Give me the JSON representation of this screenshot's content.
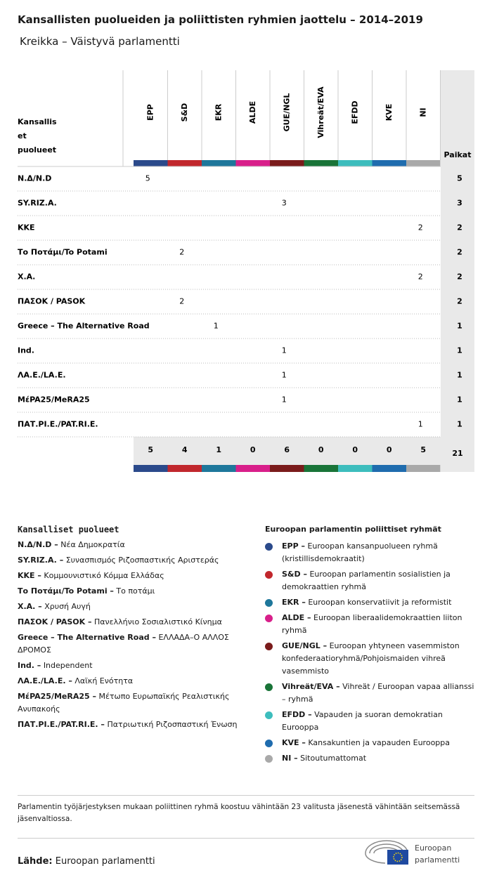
{
  "header": {
    "title": "Kansallisten puolueiden ja poliittisten ryhmien jaottelu – 2014–2019",
    "subtitle": "Kreikka – Väistyvä parlamentti"
  },
  "table": {
    "party_header": [
      "Kansallis",
      "et",
      "puolueet"
    ],
    "total_header": "Paikat",
    "groups": [
      {
        "name": "EPP",
        "color": "#2b4a8b"
      },
      {
        "name": "S&D",
        "color": "#c1272d"
      },
      {
        "name": "EKR",
        "color": "#1e779b"
      },
      {
        "name": "ALDE",
        "color": "#d81f8a"
      },
      {
        "name": "GUE/NGL",
        "color": "#7a1b1b"
      },
      {
        "name": "Vihreät/EVA",
        "color": "#197438"
      },
      {
        "name": "EFDD",
        "color": "#3dbdbd"
      },
      {
        "name": "KVE",
        "color": "#1f6cae"
      },
      {
        "name": "NI",
        "color": "#a9a9a9"
      }
    ],
    "rows": [
      {
        "party": "N.Δ/N.D",
        "cells": [
          5,
          null,
          null,
          null,
          null,
          null,
          null,
          null,
          null
        ],
        "total": 5
      },
      {
        "party": "SY.RIZ.A.",
        "cells": [
          null,
          null,
          null,
          null,
          3,
          null,
          null,
          null,
          null
        ],
        "total": 3
      },
      {
        "party": "KKE",
        "cells": [
          null,
          null,
          null,
          null,
          null,
          null,
          null,
          null,
          2
        ],
        "total": 2
      },
      {
        "party": "Το Ποτάμι/To Potami",
        "cells": [
          null,
          2,
          null,
          null,
          null,
          null,
          null,
          null,
          null
        ],
        "total": 2
      },
      {
        "party": "Χ.Α.",
        "cells": [
          null,
          null,
          null,
          null,
          null,
          null,
          null,
          null,
          2
        ],
        "total": 2
      },
      {
        "party": "ΠΑΣΟΚ / PASOK",
        "cells": [
          null,
          2,
          null,
          null,
          null,
          null,
          null,
          null,
          null
        ],
        "total": 2
      },
      {
        "party": "Greece – The Alternative Road",
        "cells": [
          null,
          null,
          1,
          null,
          null,
          null,
          null,
          null,
          null
        ],
        "total": 1
      },
      {
        "party": "Ind.",
        "cells": [
          null,
          null,
          null,
          null,
          1,
          null,
          null,
          null,
          null
        ],
        "total": 1
      },
      {
        "party": "ΛΑ.Ε./LA.E.",
        "cells": [
          null,
          null,
          null,
          null,
          1,
          null,
          null,
          null,
          null
        ],
        "total": 1
      },
      {
        "party": "MέPA25/MeRA25",
        "cells": [
          null,
          null,
          null,
          null,
          1,
          null,
          null,
          null,
          null
        ],
        "total": 1
      },
      {
        "party": "ΠΑΤ.ΡΙ.Ε./PAT.RI.E.",
        "cells": [
          null,
          null,
          null,
          null,
          null,
          null,
          null,
          null,
          1
        ],
        "total": 1
      }
    ],
    "totals": {
      "cells": [
        5,
        4,
        1,
        0,
        6,
        0,
        0,
        0,
        5
      ],
      "total": 21
    }
  },
  "legend_parties": {
    "title": "Kansalliset puolueet",
    "items": [
      {
        "abbr": "N.Δ/N.D –",
        "name": "Νέα Δημοκρατία"
      },
      {
        "abbr": "SY.RIZ.A. –",
        "name": "Συνασπισμός Ριζοσπαστικής Αριστεράς"
      },
      {
        "abbr": "KKE –",
        "name": "Κομμουνιστικό Κόμμα Ελλάδας"
      },
      {
        "abbr": "Το Ποτάμι/To Potami –",
        "name": "Το ποτάμι"
      },
      {
        "abbr": "Χ.Α. –",
        "name": "Χρυσή Αυγή"
      },
      {
        "abbr": "ΠΑΣΟΚ / PASOK –",
        "name": "Πανελλήνιο Σοσιαλιστικό Κίνημα"
      },
      {
        "abbr": "Greece – The Alternative Road –",
        "name": "ΕΛΛΑΔΑ–Ο ΑΛΛΟΣ ΔΡΟΜΟΣ"
      },
      {
        "abbr": "Ind. –",
        "name": "Independent"
      },
      {
        "abbr": "ΛΑ.Ε./LA.E. –",
        "name": "Λαϊκή Ενότητα"
      },
      {
        "abbr": "MέPA25/MeRA25 –",
        "name": "Μέτωπο Ευρωπαϊκής Ρεαλιστικής Ανυπακοής"
      },
      {
        "abbr": "ΠΑΤ.ΡΙ.Ε./PAT.RI.E. –",
        "name": "Πατριωτική Ριζοσπαστική Ένωση"
      }
    ]
  },
  "legend_groups": {
    "title": "Euroopan parlamentin poliittiset ryhmät",
    "items": [
      {
        "abbr": "EPP –",
        "name": "Euroopan kansanpuolueen ryhmä (kristillisdemokraatit)"
      },
      {
        "abbr": "S&D –",
        "name": "Euroopan parlamentin sosialistien ja demokraattien ryhmä"
      },
      {
        "abbr": "EKR –",
        "name": "Euroopan konservatiivit ja reformistit"
      },
      {
        "abbr": "ALDE –",
        "name": "Euroopan liberaalidemokraattien liiton ryhmä"
      },
      {
        "abbr": "GUE/NGL –",
        "name": "Euroopan yhtyneen vasemmiston konfederaatioryhmä/Pohjoismaiden vihreä vasemmisto"
      },
      {
        "abbr": "Vihreät/EVA –",
        "name": "Vihreät / Euroopan vapaa allianssi – ryhmä"
      },
      {
        "abbr": "EFDD –",
        "name": "Vapauden ja suoran demokratian Eurooppa"
      },
      {
        "abbr": "KVE –",
        "name": "Kansakuntien ja vapauden Eurooppa"
      },
      {
        "abbr": "NI –",
        "name": "Sitoutumattomat"
      }
    ]
  },
  "footnote": "Parlamentin työjärjestyksen mukaan poliittinen ryhmä koostuu vähintään 23 valitusta jäsenestä vähintään seitsemässä jäsenvaltiossa.",
  "source": {
    "label": "Lähde:",
    "value": "Euroopan parlamentti"
  },
  "logo": [
    "Euroopan",
    "parlamentti"
  ]
}
